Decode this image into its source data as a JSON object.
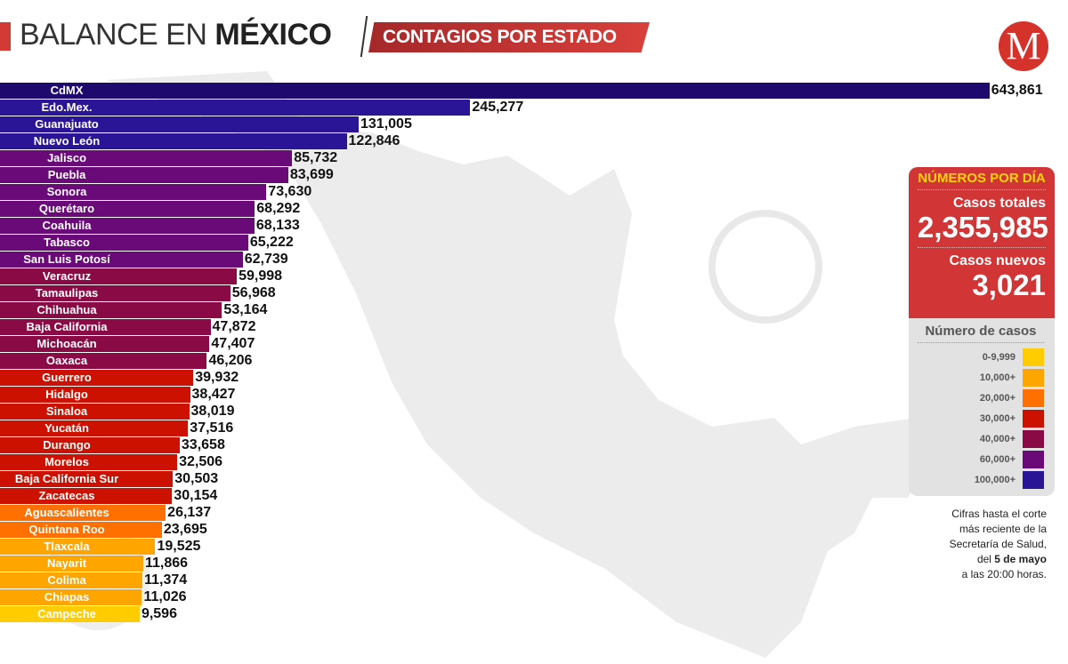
{
  "header": {
    "title_light": "BALANCE EN",
    "title_bold": "MÉXICO",
    "subtitle": "CONTAGIOS POR ESTADO",
    "logo": "M"
  },
  "chart_data": {
    "type": "bar",
    "orientation": "horizontal",
    "categories": [
      "CdMX",
      "Edo.Mex.",
      "Guanajuato",
      "Nuevo León",
      "Jalisco",
      "Puebla",
      "Sonora",
      "Querétaro",
      "Coahuila",
      "Tabasco",
      "San Luis Potosí",
      "Veracruz",
      "Tamaulipas",
      "Chihuahua",
      "Baja California",
      "Michoacán",
      "Oaxaca",
      "Guerrero",
      "Hidalgo",
      "Sinaloa",
      "Yucatán",
      "Durango",
      "Morelos",
      "Baja California Sur",
      "Zacatecas",
      "Aguascalientes",
      "Quintana Roo",
      "Tlaxcala",
      "Nayarit",
      "Colima",
      "Chiapas",
      "Campeche"
    ],
    "values": [
      643861,
      245277,
      131005,
      122846,
      85732,
      83699,
      73630,
      68292,
      68133,
      65222,
      62739,
      59998,
      56968,
      53164,
      47872,
      47407,
      46206,
      39932,
      38427,
      38019,
      37516,
      33658,
      32506,
      30503,
      30154,
      26137,
      23695,
      19525,
      11866,
      11374,
      11026,
      9596
    ],
    "value_labels": [
      "643,861",
      "245,277",
      "131,005",
      "122,846",
      "85,732",
      "83,699",
      "73,630",
      "68,292",
      "68,133",
      "65,222",
      "62,739",
      "59,998",
      "56,968",
      "53,164",
      "47,872",
      "47,407",
      "46,206",
      "39,932",
      "38,427",
      "38,019",
      "37,516",
      "33,658",
      "32,506",
      "30,503",
      "30,154",
      "26,137",
      "23,695",
      "19,525",
      "11,866",
      "11,374",
      "11,026",
      "9,596"
    ],
    "colors_by_tier": [
      {
        "min": 0,
        "color": "#ffcc00"
      },
      {
        "min": 10000,
        "color": "#ffa500"
      },
      {
        "min": 20000,
        "color": "#ff7000"
      },
      {
        "min": 30000,
        "color": "#cc1100"
      },
      {
        "min": 40000,
        "color": "#8a0a45"
      },
      {
        "min": 60000,
        "color": "#6a0a78"
      },
      {
        "min": 100000,
        "color": "#2a1596"
      }
    ]
  },
  "daily": {
    "heading": "NÚMEROS POR DÍA",
    "total_label": "Casos totales",
    "total": "2,355,985",
    "new_label": "Casos nuevos",
    "new": "3,021"
  },
  "legend": {
    "heading": "Número de casos",
    "items": [
      {
        "label": "0-9,999",
        "color": "#ffcc00"
      },
      {
        "label": "10,000+",
        "color": "#ffa500"
      },
      {
        "label": "20,000+",
        "color": "#ff7000"
      },
      {
        "label": "30,000+",
        "color": "#cc1100"
      },
      {
        "label": "40,000+",
        "color": "#8a0a45"
      },
      {
        "label": "60,000+",
        "color": "#6a0a78"
      },
      {
        "label": "100,000+",
        "color": "#2a1596"
      }
    ]
  },
  "note": {
    "l1": "Cifras hasta el corte",
    "l2": "más reciente de la",
    "l3": "Secretaría de Salud,",
    "l4a": "del ",
    "l4b": "5 de mayo",
    "l5": "a las 20:00 horas."
  }
}
